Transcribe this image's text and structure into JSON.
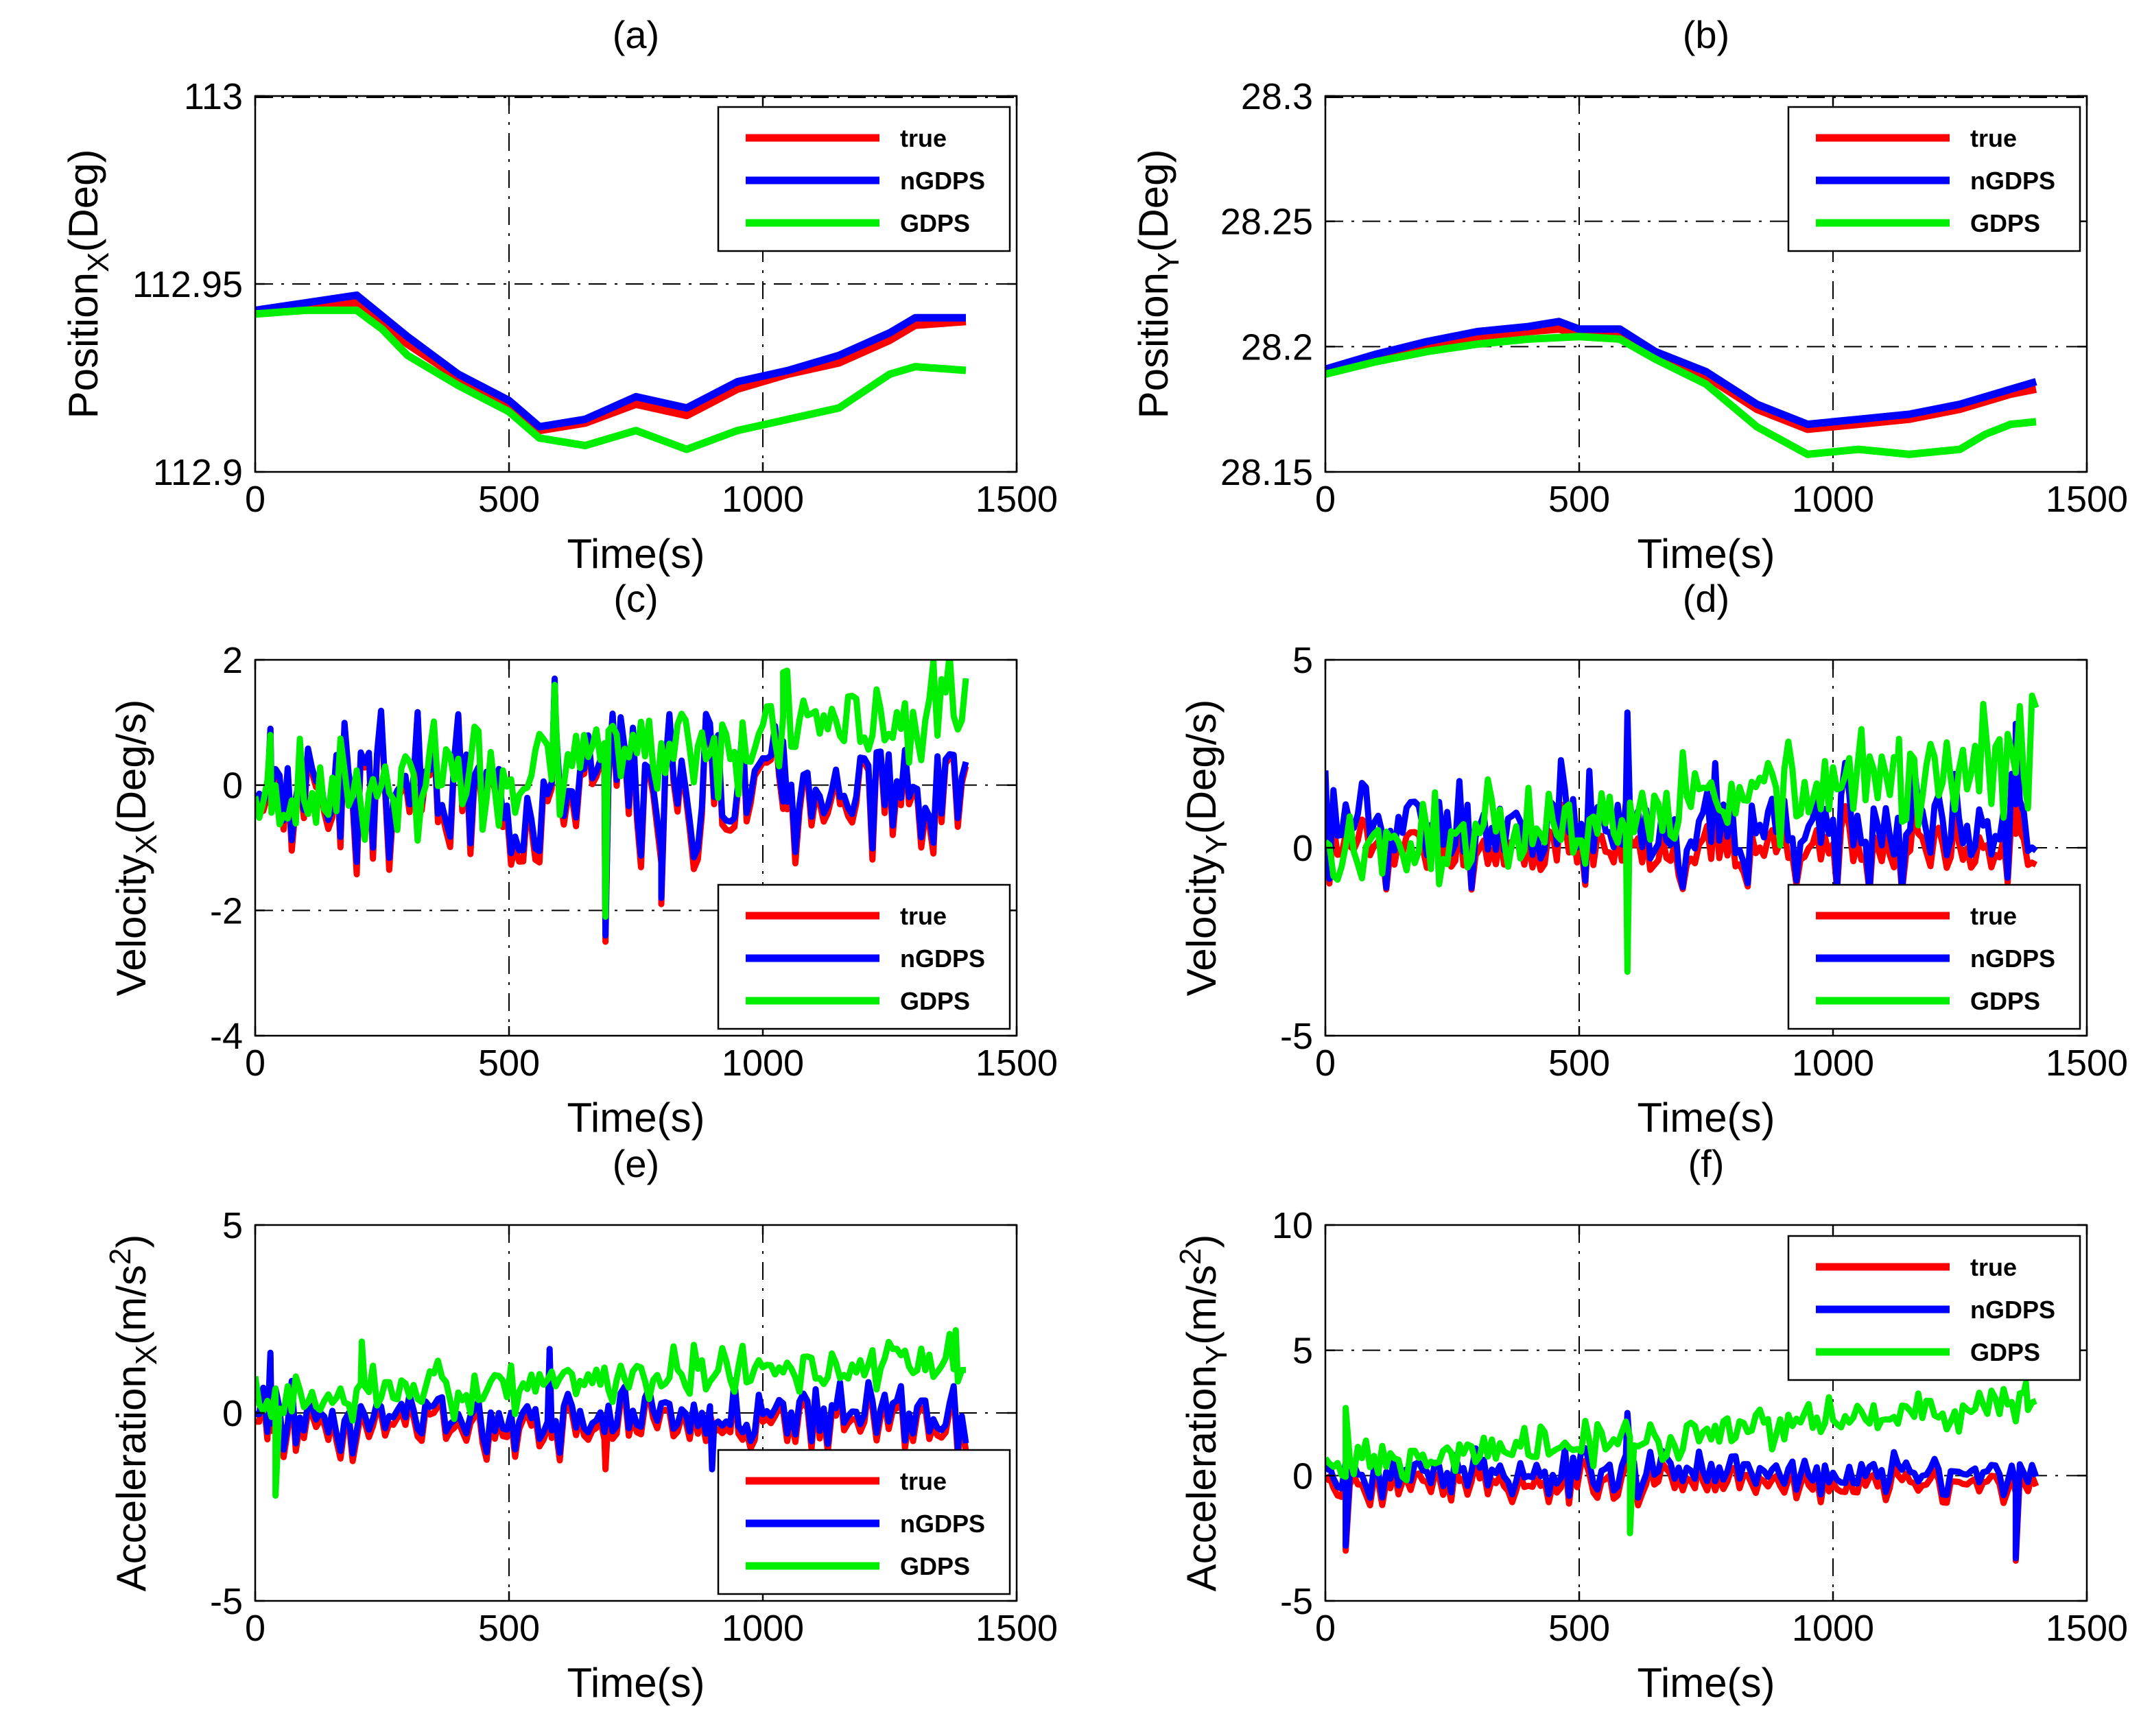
{
  "chart_data": [
    {
      "id": "a",
      "type": "line",
      "title": "(a)",
      "xlabel": "Time(s)",
      "ylabel": "Position",
      "ylabel_sub": "X",
      "ylabel_suffix": "(Deg)",
      "xlim": [
        0,
        1500
      ],
      "ylim": [
        112.9,
        113
      ],
      "xticks": [
        0,
        500,
        1000,
        1500
      ],
      "yticks": [
        112.9,
        112.95,
        113
      ],
      "ytick_labels": [
        "112.9",
        "112.95",
        "113"
      ],
      "grid": true,
      "legend_position": "top-right",
      "series": [
        {
          "name": "true",
          "color": "#ff0000",
          "x": [
            0,
            100,
            200,
            300,
            400,
            500,
            560,
            650,
            750,
            850,
            950,
            1050,
            1150,
            1250,
            1300,
            1400
          ],
          "y": [
            112.942,
            112.944,
            112.945,
            112.934,
            112.925,
            112.918,
            112.911,
            112.913,
            112.918,
            112.915,
            112.922,
            112.926,
            112.929,
            112.935,
            112.939,
            112.94
          ]
        },
        {
          "name": "nGDPS",
          "color": "#0000ff",
          "x": [
            0,
            100,
            200,
            300,
            400,
            500,
            560,
            650,
            750,
            850,
            950,
            1050,
            1150,
            1250,
            1300,
            1400
          ],
          "y": [
            112.943,
            112.945,
            112.947,
            112.936,
            112.926,
            112.919,
            112.912,
            112.914,
            112.92,
            112.917,
            112.924,
            112.927,
            112.931,
            112.937,
            112.941,
            112.941
          ]
        },
        {
          "name": "GDPS",
          "color": "#00ee00",
          "x": [
            0,
            100,
            200,
            250,
            300,
            400,
            500,
            560,
            650,
            750,
            850,
            950,
            1050,
            1150,
            1250,
            1300,
            1400
          ],
          "y": [
            112.942,
            112.943,
            112.943,
            112.938,
            112.931,
            112.923,
            112.916,
            112.909,
            112.907,
            112.911,
            112.906,
            112.911,
            112.914,
            112.917,
            112.926,
            112.928,
            112.927
          ]
        }
      ]
    },
    {
      "id": "b",
      "type": "line",
      "title": "(b)",
      "xlabel": "Time(s)",
      "ylabel": "Position",
      "ylabel_sub": "Y",
      "ylabel_suffix": "(Deg)",
      "xlim": [
        0,
        1500
      ],
      "ylim": [
        28.15,
        28.3
      ],
      "xticks": [
        0,
        500,
        1000,
        1500
      ],
      "yticks": [
        28.15,
        28.2,
        28.25,
        28.3
      ],
      "ytick_labels": [
        "28.15",
        "28.2",
        "28.25",
        "28.3"
      ],
      "grid": true,
      "legend_position": "top-right",
      "series": [
        {
          "name": "true",
          "color": "#ff0000",
          "x": [
            0,
            100,
            200,
            300,
            400,
            460,
            500,
            580,
            650,
            750,
            850,
            950,
            1050,
            1150,
            1250,
            1350,
            1400
          ],
          "y": [
            28.19,
            28.196,
            28.2,
            28.204,
            28.206,
            28.207,
            28.205,
            28.206,
            28.197,
            28.188,
            28.175,
            28.167,
            28.169,
            28.171,
            28.175,
            28.181,
            28.183
          ]
        },
        {
          "name": "nGDPS",
          "color": "#0000ff",
          "x": [
            0,
            100,
            200,
            300,
            400,
            460,
            500,
            580,
            650,
            750,
            850,
            950,
            1050,
            1150,
            1250,
            1350,
            1400
          ],
          "y": [
            28.191,
            28.197,
            28.202,
            28.206,
            28.208,
            28.21,
            28.207,
            28.207,
            28.198,
            28.19,
            28.177,
            28.169,
            28.171,
            28.173,
            28.177,
            28.183,
            28.186
          ]
        },
        {
          "name": "GDPS",
          "color": "#00ee00",
          "x": [
            0,
            100,
            200,
            300,
            400,
            500,
            580,
            650,
            750,
            850,
            950,
            1050,
            1150,
            1250,
            1300,
            1350,
            1400
          ],
          "y": [
            28.189,
            28.194,
            28.198,
            28.201,
            28.203,
            28.204,
            28.203,
            28.195,
            28.185,
            28.168,
            28.157,
            28.159,
            28.157,
            28.159,
            28.165,
            28.169,
            28.17
          ]
        }
      ]
    },
    {
      "id": "c",
      "type": "line",
      "title": "(c)",
      "xlabel": "Time(s)",
      "ylabel": "Velocity",
      "ylabel_sub": "X",
      "ylabel_suffix": "(Deg/s)",
      "xlim": [
        0,
        1500
      ],
      "ylim": [
        -4,
        2
      ],
      "xticks": [
        0,
        500,
        1000,
        1500
      ],
      "yticks": [
        -4,
        -2,
        0,
        2
      ],
      "ytick_labels": [
        "-4",
        "-2",
        "0",
        "2"
      ],
      "grid": true,
      "legend_position": "bottom-right",
      "noise": {
        "true": {
          "base": -0.1,
          "amp": 1.4,
          "seed": 3
        },
        "nGDPS": {
          "base": 0.0,
          "amp": 1.3,
          "seed": 3
        },
        "GDPS": {
          "base": -0.3,
          "amp": 1.0,
          "seed": 7,
          "trend_end": 1.3
        }
      },
      "series": [
        {
          "name": "true",
          "color": "#ff0000",
          "spikes": [
            [
              30,
              0.9
            ],
            [
              590,
              1.6
            ],
            [
              690,
              -2.5
            ],
            [
              800,
              -1.9
            ],
            [
              1040,
              0.6
            ]
          ]
        },
        {
          "name": "nGDPS",
          "color": "#0000ff",
          "spikes": [
            [
              30,
              0.9
            ],
            [
              590,
              1.7
            ],
            [
              690,
              -2.4
            ],
            [
              800,
              -1.8
            ],
            [
              1040,
              0.7
            ]
          ]
        },
        {
          "name": "GDPS",
          "color": "#00ee00",
          "spikes": [
            [
              30,
              0.8
            ],
            [
              590,
              1.6
            ],
            [
              690,
              -2.1
            ],
            [
              1040,
              1.8
            ]
          ]
        }
      ]
    },
    {
      "id": "d",
      "type": "line",
      "title": "(d)",
      "xlabel": "Time(s)",
      "ylabel": "Velocity",
      "ylabel_sub": "Y",
      "ylabel_suffix": "(Deg/s)",
      "xlim": [
        0,
        1500
      ],
      "ylim": [
        -5,
        5
      ],
      "xticks": [
        0,
        500,
        1000,
        1500
      ],
      "yticks": [
        -5,
        0,
        5
      ],
      "ytick_labels": [
        "-5",
        "0",
        "5"
      ],
      "grid": true,
      "legend_position": "bottom-right",
      "noise": {
        "true": {
          "base": 0.0,
          "amp": 1.2,
          "seed": 11
        },
        "nGDPS": {
          "base": 0.6,
          "amp": 1.8,
          "seed": 11
        },
        "GDPS": {
          "base": -0.4,
          "amp": 1.6,
          "seed": 5,
          "trend_end": 2.5
        }
      },
      "series": [
        {
          "name": "true",
          "color": "#ff0000",
          "spikes": [
            [
              595,
              3.4
            ],
            [
              1360,
              3.1
            ]
          ]
        },
        {
          "name": "nGDPS",
          "color": "#0000ff",
          "spikes": [
            [
              595,
              3.6
            ],
            [
              1360,
              3.3
            ]
          ]
        },
        {
          "name": "GDPS",
          "color": "#00ee00",
          "spikes": [
            [
              595,
              -3.3
            ],
            [
              1130,
              2.9
            ]
          ]
        }
      ]
    },
    {
      "id": "e",
      "type": "line",
      "title": "(e)",
      "xlabel": "Time(s)",
      "ylabel": "Acceleration",
      "ylabel_sub": "X",
      "ylabel_suffix": "(m/s",
      "ylabel_sup": "2",
      "ylabel_end": ")",
      "xlim": [
        0,
        1500
      ],
      "ylim": [
        -5,
        5
      ],
      "xticks": [
        0,
        500,
        1000,
        1500
      ],
      "yticks": [
        -5,
        0,
        5
      ],
      "ytick_labels": [
        "-5",
        "0",
        "5"
      ],
      "grid": true,
      "legend_position": "bottom-right",
      "noise": {
        "true": {
          "base": -0.3,
          "amp": 1.0,
          "seed": 13
        },
        "nGDPS": {
          "base": -0.1,
          "amp": 1.0,
          "seed": 13
        },
        "GDPS": {
          "base": 0.3,
          "amp": 0.8,
          "seed": 17,
          "trend_end": 1.5
        }
      },
      "series": [
        {
          "name": "true",
          "color": "#ff0000",
          "spikes": [
            [
              30,
              1.5
            ],
            [
              580,
              1.6
            ],
            [
              690,
              -1.5
            ]
          ]
        },
        {
          "name": "nGDPS",
          "color": "#0000ff",
          "spikes": [
            [
              30,
              1.6
            ],
            [
              580,
              1.7
            ],
            [
              900,
              -1.5
            ]
          ]
        },
        {
          "name": "GDPS",
          "color": "#00ee00",
          "spikes": [
            [
              40,
              -2.2
            ],
            [
              210,
              1.9
            ],
            [
              1380,
              2.2
            ]
          ]
        }
      ]
    },
    {
      "id": "f",
      "type": "line",
      "title": "(f)",
      "xlabel": "Time(s)",
      "ylabel": "Acceleration",
      "ylabel_sub": "Y",
      "ylabel_suffix": "(m/s",
      "ylabel_sup": "2",
      "ylabel_end": ")",
      "xlim": [
        0,
        1500
      ],
      "ylim": [
        -5,
        10
      ],
      "xticks": [
        0,
        500,
        1000,
        1500
      ],
      "yticks": [
        -5,
        0,
        5,
        10
      ],
      "ytick_labels": [
        "-5",
        "0",
        "5",
        "10"
      ],
      "grid": true,
      "legend_position": "top-right",
      "noise": {
        "true": {
          "base": -0.3,
          "amp": 0.9,
          "seed": 19
        },
        "nGDPS": {
          "base": 0.1,
          "amp": 1.0,
          "seed": 19
        },
        "GDPS": {
          "base": 0.3,
          "amp": 1.0,
          "seed": 23,
          "trend_end": 3.0
        }
      },
      "series": [
        {
          "name": "true",
          "color": "#ff0000",
          "spikes": [
            [
              40,
              -3.0
            ],
            [
              595,
              2.4
            ],
            [
              1360,
              -3.4
            ]
          ]
        },
        {
          "name": "nGDPS",
          "color": "#0000ff",
          "spikes": [
            [
              40,
              -2.8
            ],
            [
              595,
              2.5
            ],
            [
              1360,
              -3.3
            ]
          ]
        },
        {
          "name": "GDPS",
          "color": "#00ee00",
          "spikes": [
            [
              40,
              2.7
            ],
            [
              600,
              -2.3
            ],
            [
              1380,
              3.7
            ]
          ]
        }
      ]
    }
  ]
}
